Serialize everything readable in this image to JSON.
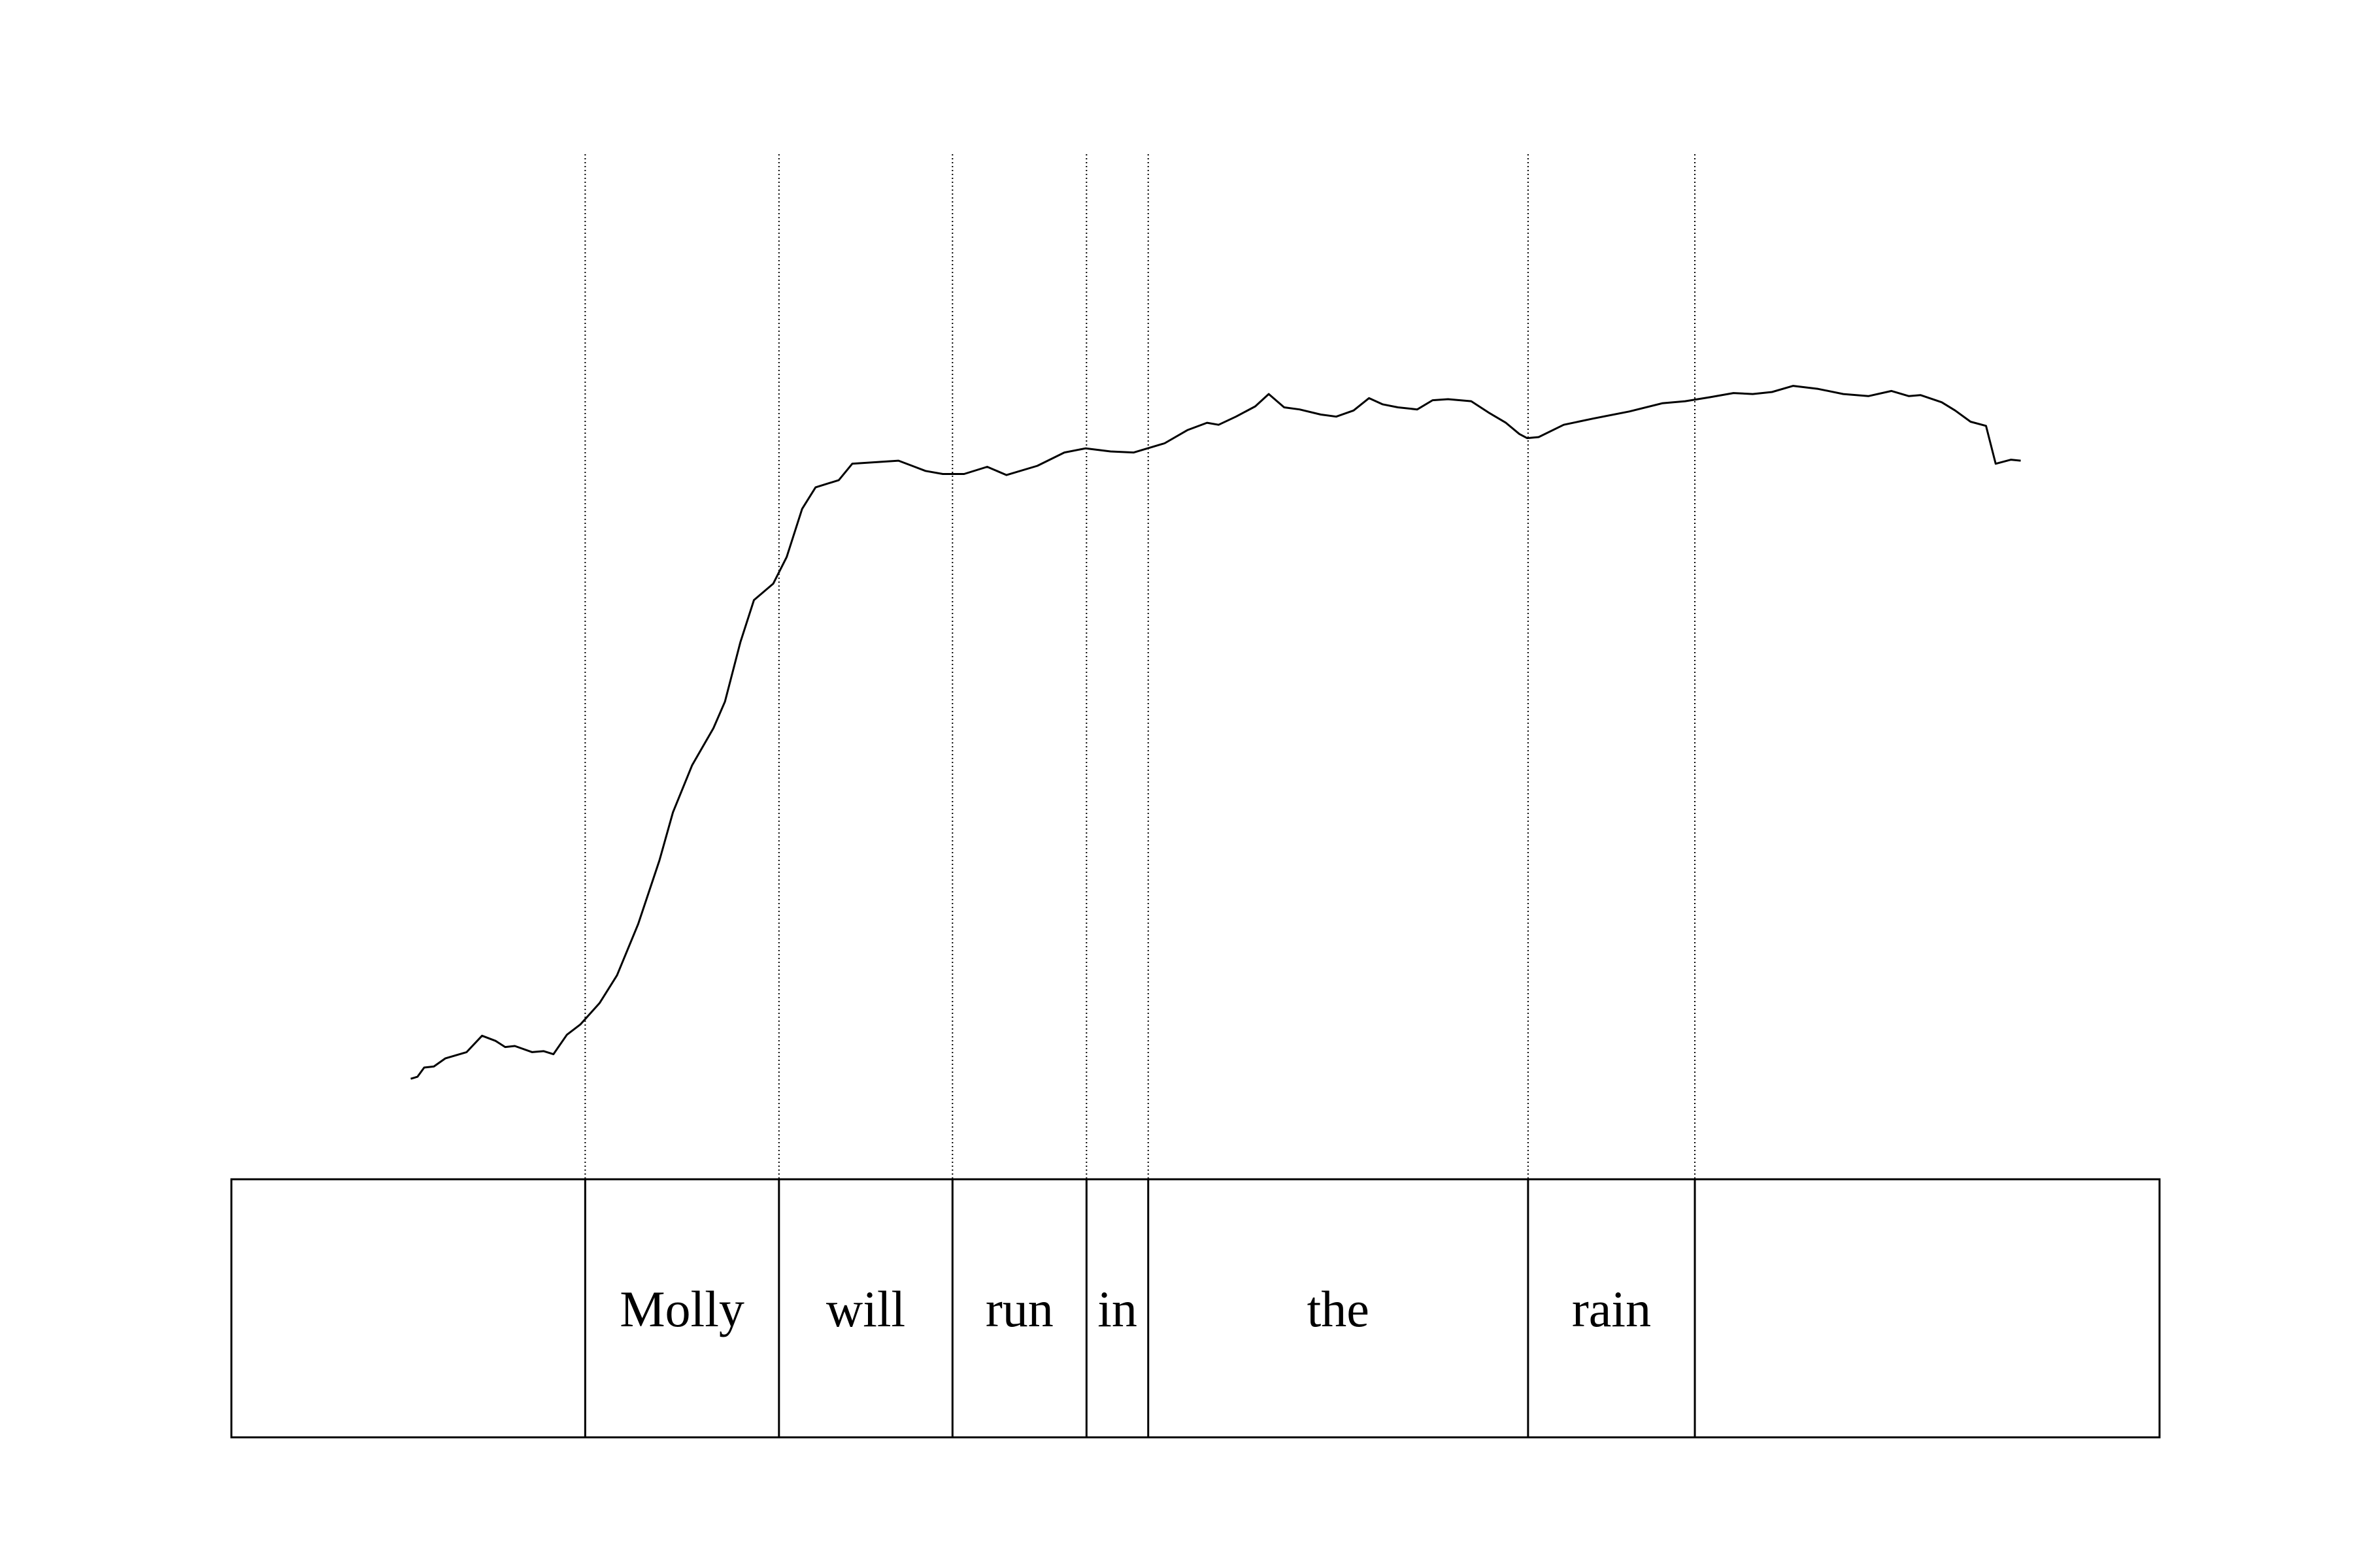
{
  "chart_data": {
    "type": "line",
    "title": "",
    "xlabel": "",
    "ylabel": "",
    "xlim": [
      0,
      1.0
    ],
    "ylim": [
      0,
      1.0
    ],
    "grid": false,
    "series": [
      {
        "values": [
          [
            0.093,
            0.098
          ],
          [
            0.0965,
            0.1
          ],
          [
            0.1,
            0.109
          ],
          [
            0.105,
            0.11
          ],
          [
            0.111,
            0.118
          ],
          [
            0.122,
            0.124
          ],
          [
            0.13,
            0.14
          ],
          [
            0.137,
            0.135
          ],
          [
            0.142,
            0.129
          ],
          [
            0.147,
            0.13
          ],
          [
            0.156,
            0.124
          ],
          [
            0.162,
            0.125
          ],
          [
            0.167,
            0.122
          ],
          [
            0.174,
            0.141
          ],
          [
            0.181,
            0.151
          ],
          [
            0.191,
            0.172
          ],
          [
            0.2,
            0.199
          ],
          [
            0.211,
            0.249
          ],
          [
            0.222,
            0.311
          ],
          [
            0.229,
            0.358
          ],
          [
            0.239,
            0.404
          ],
          [
            0.25,
            0.44
          ],
          [
            0.256,
            0.466
          ],
          [
            0.264,
            0.524
          ],
          [
            0.271,
            0.565
          ],
          [
            0.276,
            0.573
          ],
          [
            0.281,
            0.581
          ],
          [
            0.288,
            0.607
          ],
          [
            0.296,
            0.654
          ],
          [
            0.303,
            0.675
          ],
          [
            0.315,
            0.682
          ],
          [
            0.322,
            0.698
          ],
          [
            0.346,
            0.701
          ],
          [
            0.36,
            0.691
          ],
          [
            0.369,
            0.688
          ],
          [
            0.38,
            0.688
          ],
          [
            0.392,
            0.695
          ],
          [
            0.402,
            0.687
          ],
          [
            0.418,
            0.696
          ],
          [
            0.432,
            0.709
          ],
          [
            0.443,
            0.713
          ],
          [
            0.456,
            0.71
          ],
          [
            0.468,
            0.709
          ],
          [
            0.484,
            0.718
          ],
          [
            0.496,
            0.731
          ],
          [
            0.506,
            0.738
          ],
          [
            0.512,
            0.736
          ],
          [
            0.521,
            0.744
          ],
          [
            0.531,
            0.754
          ],
          [
            0.538,
            0.766
          ],
          [
            0.546,
            0.753
          ],
          [
            0.554,
            0.751
          ],
          [
            0.565,
            0.746
          ],
          [
            0.573,
            0.744
          ],
          [
            0.582,
            0.75
          ],
          [
            0.59,
            0.762
          ],
          [
            0.597,
            0.756
          ],
          [
            0.605,
            0.753
          ],
          [
            0.615,
            0.751
          ],
          [
            0.623,
            0.76
          ],
          [
            0.631,
            0.761
          ],
          [
            0.643,
            0.759
          ],
          [
            0.652,
            0.748
          ],
          [
            0.661,
            0.738
          ],
          [
            0.668,
            0.727
          ],
          [
            0.672,
            0.723
          ],
          [
            0.678,
            0.724
          ],
          [
            0.691,
            0.736
          ],
          [
            0.706,
            0.742
          ],
          [
            0.725,
            0.749
          ],
          [
            0.742,
            0.757
          ],
          [
            0.754,
            0.759
          ],
          [
            0.767,
            0.763
          ],
          [
            0.779,
            0.767
          ],
          [
            0.789,
            0.766
          ],
          [
            0.799,
            0.768
          ],
          [
            0.81,
            0.774
          ],
          [
            0.823,
            0.771
          ],
          [
            0.836,
            0.766
          ],
          [
            0.849,
            0.764
          ],
          [
            0.861,
            0.769
          ],
          [
            0.87,
            0.764
          ],
          [
            0.876,
            0.765
          ],
          [
            0.887,
            0.758
          ],
          [
            0.894,
            0.75
          ],
          [
            0.902,
            0.739
          ],
          [
            0.91,
            0.735
          ],
          [
            0.915,
            0.698
          ],
          [
            0.923,
            0.702
          ],
          [
            0.928,
            0.701
          ]
        ]
      }
    ],
    "boundaries": [
      0.0,
      0.1835,
      0.284,
      0.374,
      0.4435,
      0.4755,
      0.6725,
      0.759
    ],
    "segments": [
      {
        "label": ""
      },
      {
        "label": "Molly"
      },
      {
        "label": "will"
      },
      {
        "label": "run"
      },
      {
        "label": "in"
      },
      {
        "label": "the"
      },
      {
        "label": "rain"
      },
      {
        "label": ""
      }
    ]
  }
}
